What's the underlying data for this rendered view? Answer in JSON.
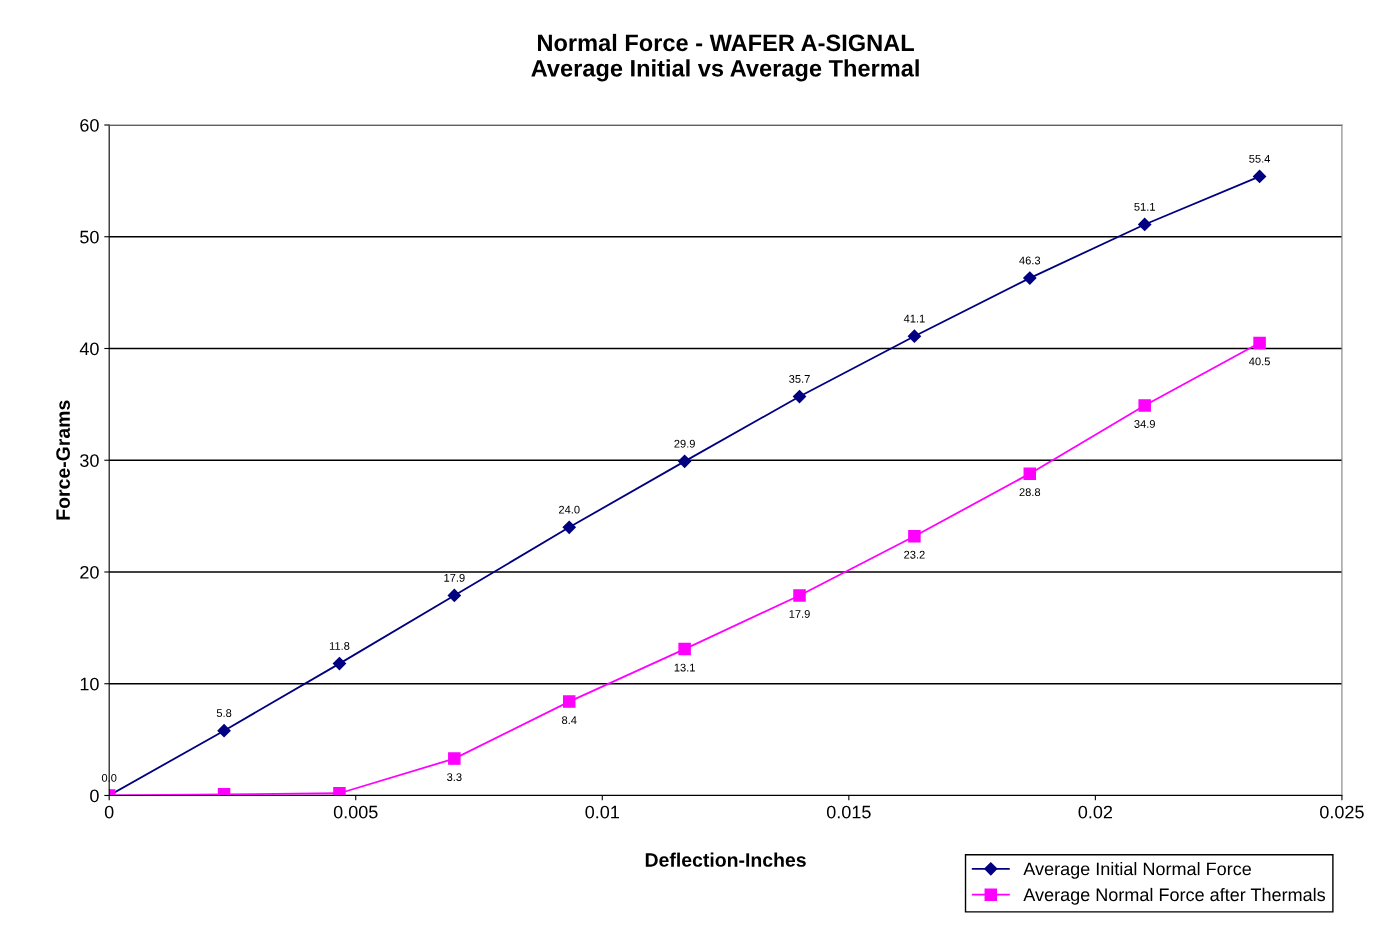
{
  "chart_data": {
    "type": "line",
    "title": "Normal Force - WAFER A-SIGNAL\nAverage Initial vs Average Thermal",
    "xlabel": "Deflection-Inches",
    "ylabel": "Force-Grams",
    "x": [
      0,
      0.00233,
      0.00467,
      0.007,
      0.00933,
      0.01167,
      0.014,
      0.01633,
      0.01867,
      0.021,
      0.02333
    ],
    "series": [
      {
        "name": "Average Initial Normal Force",
        "color": "#000080",
        "marker": "diamond",
        "values": [
          0.0,
          5.8,
          11.8,
          17.9,
          24.0,
          29.9,
          35.7,
          41.1,
          46.3,
          51.1,
          55.4
        ],
        "value_labels": [
          "0.0",
          "5.8",
          "11.8",
          "17.9",
          "24.0",
          "29.9",
          "35.7",
          "41.1",
          "46.3",
          "51.1",
          "55.4"
        ]
      },
      {
        "name": "Average Normal Force after Thermals",
        "color": "#ff00ff",
        "marker": "square",
        "values": [
          0.0,
          0.1,
          0.2,
          3.3,
          8.4,
          13.1,
          17.9,
          23.2,
          28.8,
          34.9,
          40.5
        ],
        "value_labels": [
          null,
          null,
          null,
          "3.3",
          "8.4",
          "13.1",
          "17.9",
          "23.2",
          "28.8",
          "34.9",
          "40.5"
        ]
      }
    ],
    "xlim": [
      0,
      0.025
    ],
    "xticks": [
      0,
      0.005,
      0.01,
      0.015,
      0.02,
      0.025
    ],
    "ylim": [
      0,
      60
    ],
    "yticks": [
      0,
      10,
      20,
      30,
      40,
      50,
      60
    ],
    "grid": "y",
    "legend": "bottom right",
    "line_style": "solid"
  }
}
